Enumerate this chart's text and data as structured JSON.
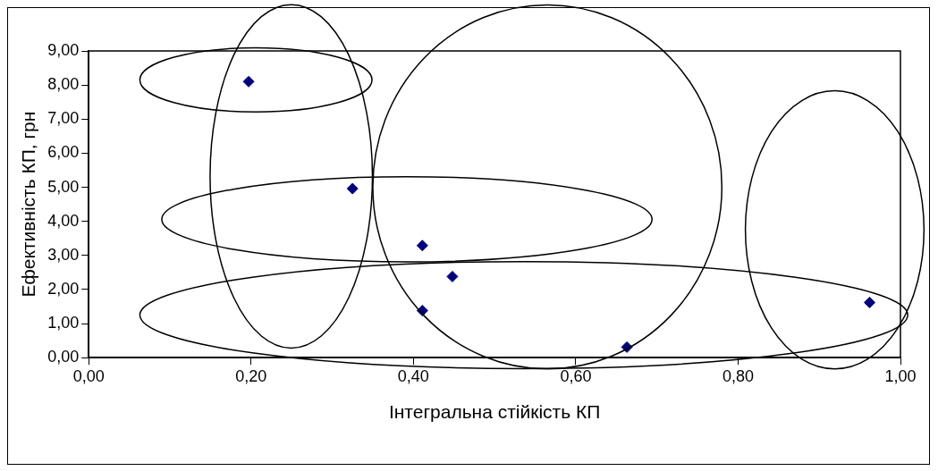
{
  "chart_data": {
    "type": "scatter",
    "xlabel": "Інтегральна стійкість КП",
    "ylabel": "Ефективність КП, грн",
    "x": [
      0.197,
      0.325,
      0.411,
      0.448,
      0.411,
      0.663,
      0.962
    ],
    "values": [
      8.1,
      4.96,
      3.29,
      2.38,
      1.38,
      0.31,
      1.62
    ],
    "color": "#000080",
    "marker": "diamond",
    "grid": false,
    "legend": false,
    "xlim": [
      0,
      1
    ],
    "xticks": [
      {
        "value": 0,
        "label": "0,00"
      },
      {
        "value": 0.2,
        "label": "0,20"
      },
      {
        "value": 0.4,
        "label": "0,40"
      },
      {
        "value": 0.6,
        "label": "0,60"
      },
      {
        "value": 0.8,
        "label": "0,80"
      },
      {
        "value": 1,
        "label": "1,00"
      }
    ],
    "ylim": [
      0,
      9
    ],
    "yticks": [
      {
        "value": 0,
        "label": "0,00"
      },
      {
        "value": 1,
        "label": "1,00"
      },
      {
        "value": 2,
        "label": "2,00"
      },
      {
        "value": 3,
        "label": "3,00"
      },
      {
        "value": 4,
        "label": "4,00"
      },
      {
        "value": 5,
        "label": "5,00"
      },
      {
        "value": 6,
        "label": "6,00"
      },
      {
        "value": 7,
        "label": "7,00"
      },
      {
        "value": 8,
        "label": "8,00"
      },
      {
        "value": 9,
        "label": "9,00"
      }
    ]
  }
}
